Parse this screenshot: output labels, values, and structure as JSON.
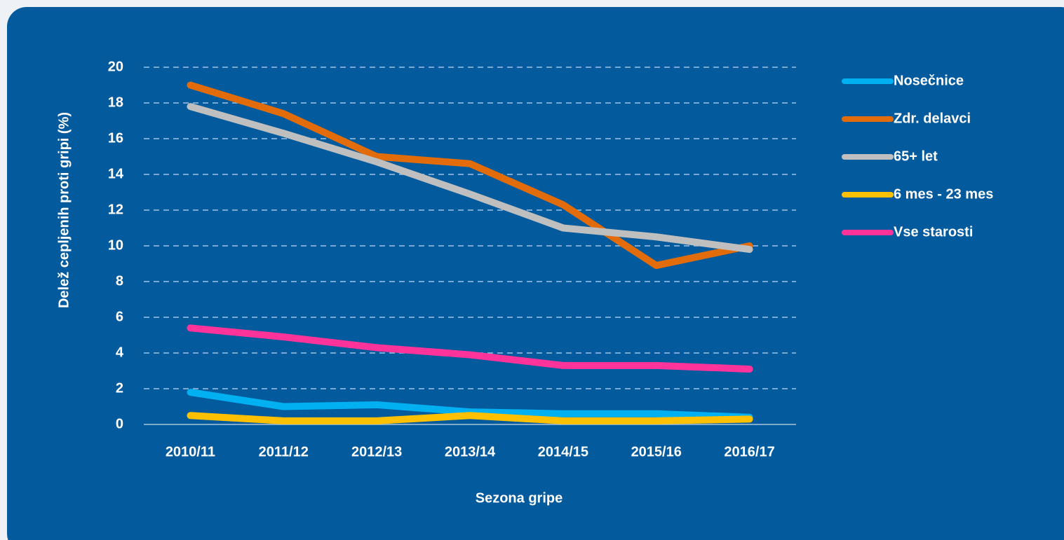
{
  "chart_data": {
    "type": "line",
    "y_label": "Delež cepljenih proti gripi (%)",
    "x_label": "Sezona gripe",
    "categories": [
      "2010/11",
      "2011/12",
      "2012/13",
      "2013/14",
      "2014/15",
      "2015/16",
      "2016/17"
    ],
    "series": [
      {
        "name": "Nosečnice",
        "color": "#00b0f0",
        "values": [
          1.8,
          1.0,
          1.1,
          0.7,
          0.6,
          0.6,
          0.4
        ]
      },
      {
        "name": "Zdr. delavci",
        "color": "#e36c0a",
        "values": [
          19.0,
          17.4,
          15.0,
          14.6,
          12.3,
          8.9,
          10.0
        ]
      },
      {
        "name": "65+ let",
        "color": "#bfbfbf",
        "values": [
          17.8,
          16.3,
          14.7,
          12.9,
          11.0,
          10.5,
          9.8
        ]
      },
      {
        "name": "6 mes - 23 mes",
        "color": "#ffc000",
        "values": [
          0.5,
          0.2,
          0.2,
          0.5,
          0.2,
          0.2,
          0.3
        ]
      },
      {
        "name": "Vse starosti",
        "color": "#ff3399",
        "values": [
          5.4,
          4.9,
          4.3,
          3.9,
          3.3,
          3.3,
          3.1
        ]
      }
    ],
    "ylim": [
      0,
      20
    ],
    "yticks": [
      0,
      2,
      4,
      6,
      8,
      10,
      12,
      14,
      16,
      18,
      20
    ],
    "grid": true,
    "legend": "right"
  }
}
